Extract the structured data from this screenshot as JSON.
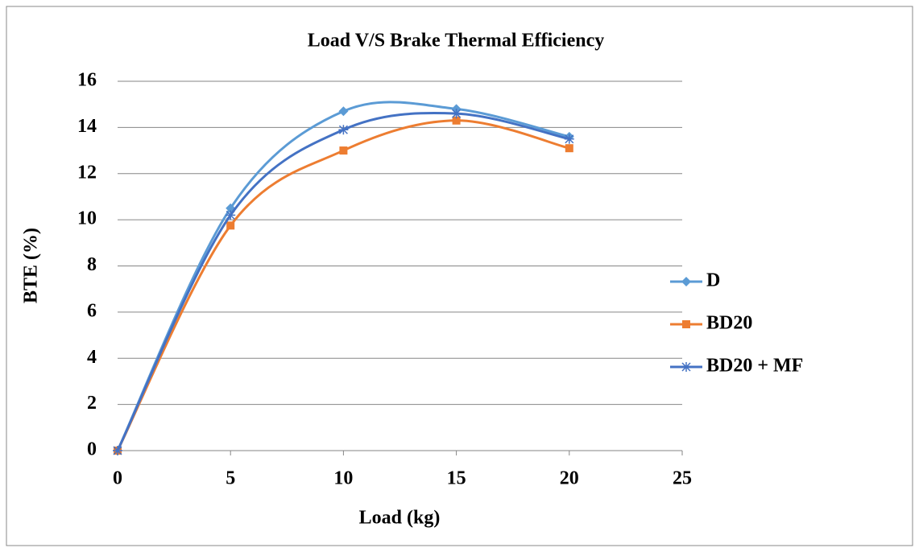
{
  "chart_data": {
    "type": "line",
    "title": "Load V/S Brake Thermal Efficiency",
    "xlabel": "Load (kg)",
    "ylabel": "BTE  (%)",
    "x": [
      0,
      5,
      10,
      15,
      20
    ],
    "series": [
      {
        "name": "D",
        "color": "#5b9bd5",
        "marker": "diamond",
        "values": [
          0,
          10.5,
          14.7,
          14.8,
          13.6
        ]
      },
      {
        "name": "BD20",
        "color": "#ed7d31",
        "marker": "square",
        "values": [
          0,
          9.75,
          13.0,
          14.3,
          13.1
        ]
      },
      {
        "name": "BD20 + MF",
        "color": "#4472c4",
        "marker": "asterisk",
        "values": [
          0,
          10.2,
          13.9,
          14.6,
          13.5
        ]
      }
    ],
    "xlim": [
      0,
      25
    ],
    "xticks": [
      0,
      5,
      10,
      15,
      20,
      25
    ],
    "ylim": [
      0,
      16
    ],
    "yticks": [
      0,
      2,
      4,
      6,
      8,
      10,
      12,
      14,
      16
    ],
    "grid": true,
    "smooth": true,
    "legend": "right"
  }
}
